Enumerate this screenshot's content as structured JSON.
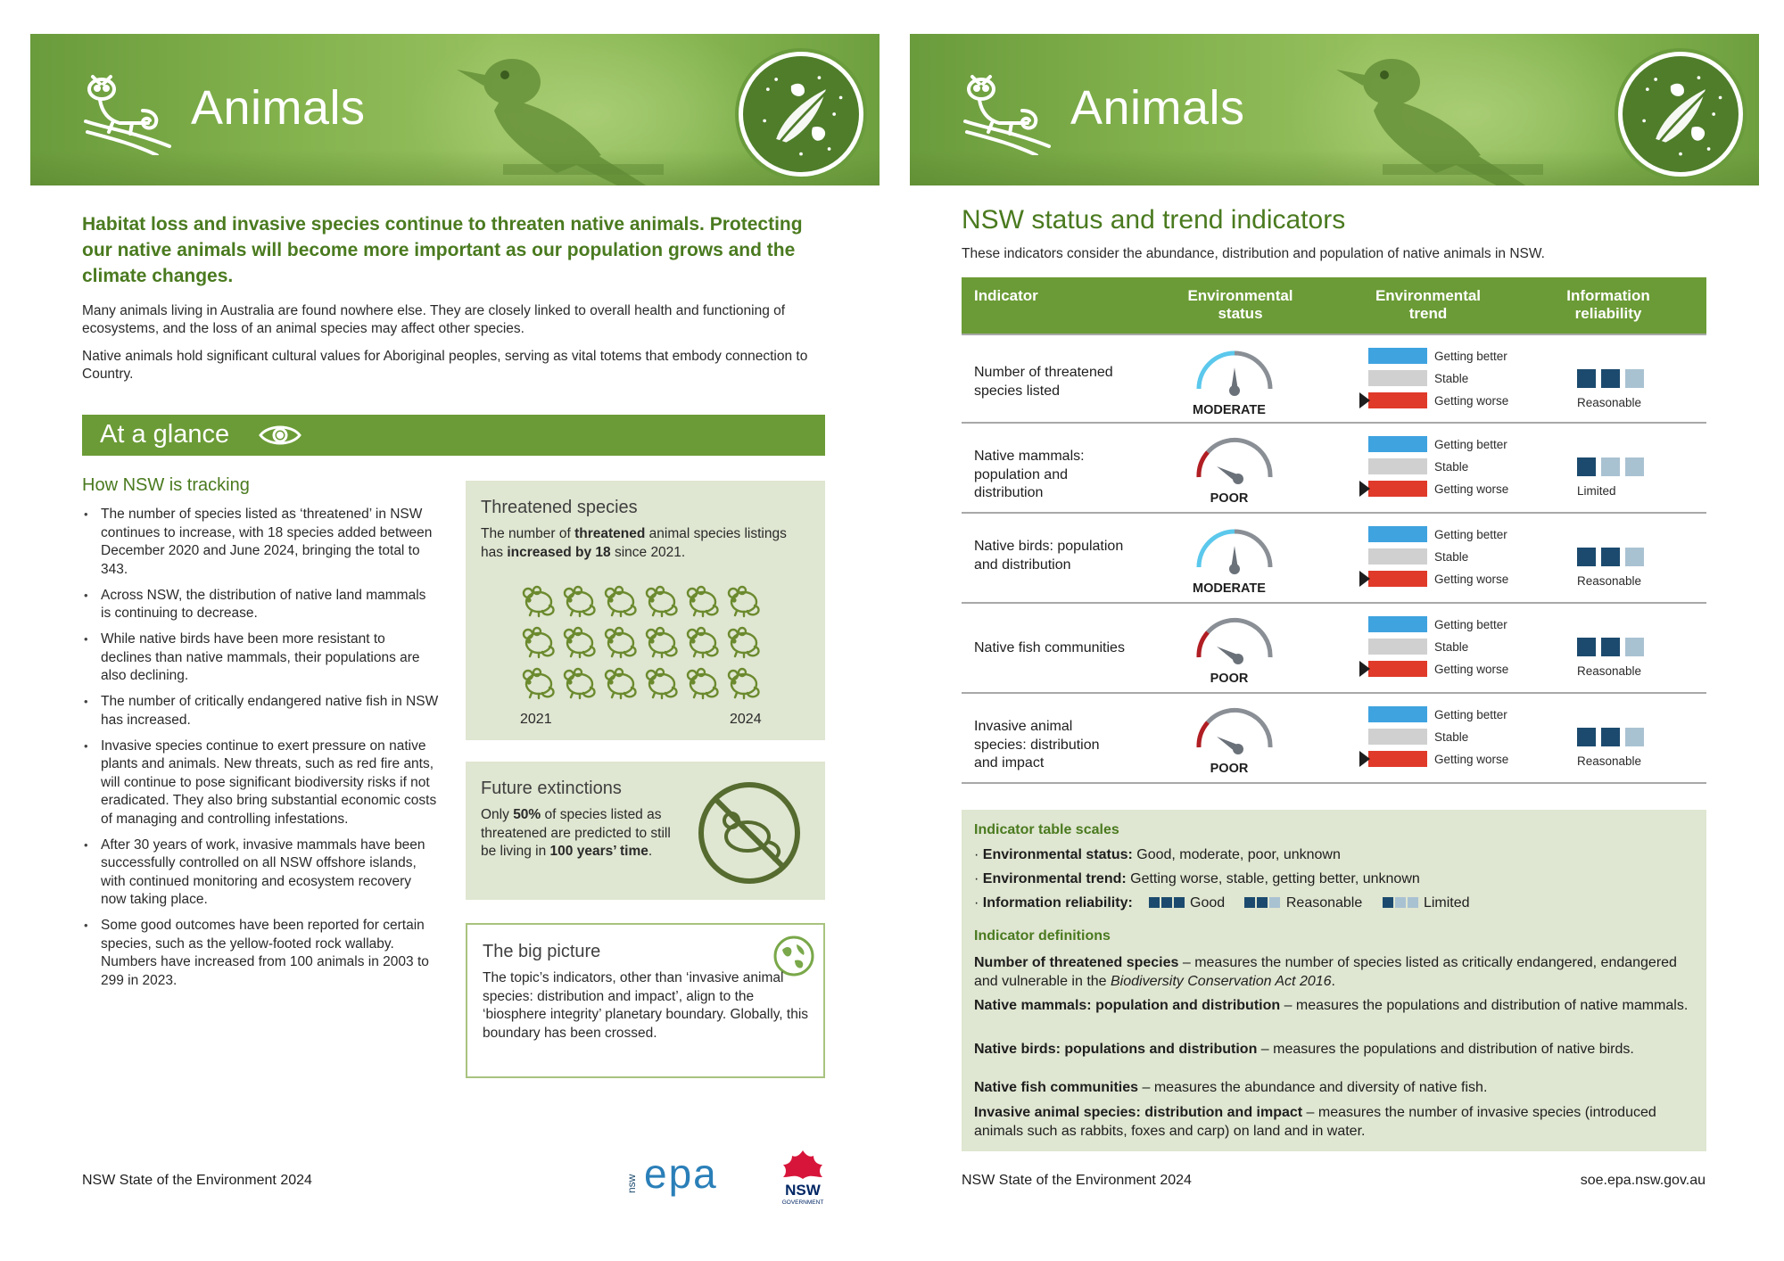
{
  "colors": {
    "brand_green": "#6b9b36",
    "heading_green": "#4a7a1f",
    "panel_green": "#dfe6d1",
    "trend_better": "#3fa3e0",
    "trend_stable": "#d0d0d0",
    "trend_worse": "#e03a2a",
    "rel_dark": "#1c4a6e",
    "rel_light": "#a9c2d2"
  },
  "left": {
    "banner_title": "Animals",
    "lead": "Habitat loss and invasive species continue to threaten native animals. Protecting our native animals will become more important as our population grows and the climate changes.",
    "para1": "Many animals living in Australia are found nowhere else. They are closely linked to overall health and functioning of ecosystems, and the loss of an animal species may affect other species.",
    "para2": "Native animals hold significant cultural values for Aboriginal peoples, serving as vital totems that embody connection to Country.",
    "glance_title": "At a glance",
    "tracking_heading": "How NSW is tracking",
    "bullets": [
      "The number of species listed as ‘threatened’ in NSW continues to increase, with 18 species added between December 2020 and June 2024, bringing the total to 343.",
      "Across NSW, the distribution of native land mammals is continuing to decrease.",
      "While native birds have been more resistant to declines than native mammals, their populations are also declining.",
      "The number of critically endangered native fish in NSW has increased.",
      "Invasive species continue to exert pressure on native plants and animals. New threats, such as red fire ants, will continue to pose significant biodiversity risks if not eradicated. They also bring substantial economic costs of managing and controlling infestations.",
      "After 30 years of work, invasive mammals have been successfully controlled on all NSW offshore islands, with continued monitoring and ecosystem recovery now taking place.",
      "Some good outcomes have been reported for certain species, such as the yellow-footed rock wallaby. Numbers have increased from 100 animals in 2003 to 299 in 2023."
    ],
    "threatened": {
      "title": "Threatened species",
      "t1": "The number of ",
      "t1b": "threatened",
      "t2": " animal species listings has ",
      "t2b": "increased by 18",
      "t3": " since 2021.",
      "year_start": "2021",
      "year_end": "2024",
      "icon_count": 18
    },
    "extinctions": {
      "title": "Future extinctions",
      "t1": "Only ",
      "t1b": "50%",
      "t2": " of species listed as threatened are predicted to still be living in ",
      "t2b": "100 years’ time",
      "t3": "."
    },
    "big_picture": {
      "title": "The big picture",
      "text": "The topic’s indicators, other than ‘invasive animal species: distribution and impact’, align to the ‘biosphere integrity’ planetary boundary. Globally, this boundary has been crossed."
    },
    "footer": "NSW State of the Environment 2024",
    "epa_small": "nsw",
    "epa_text": "epa",
    "nsw_text": "NSW",
    "nsw_gov": "GOVERNMENT"
  },
  "right": {
    "banner_title": "Animals",
    "title": "NSW status and trend indicators",
    "subtitle": "These indicators consider the abundance, distribution and population of native animals in NSW.",
    "headers": {
      "indicator": "Indicator",
      "status": "Environmental status",
      "trend": "Environmental trend",
      "reliability": "Information reliability"
    },
    "trend_labels": {
      "better": "Getting better",
      "stable": "Stable",
      "worse": "Getting worse"
    },
    "rows": [
      {
        "name": "Number of threatened species listed",
        "status": "MODERATE",
        "trend": "worse",
        "reliability": "Reasonable",
        "rel_level": 2
      },
      {
        "name": "Native mammals: population and distribution",
        "status": "POOR",
        "trend": "worse",
        "reliability": "Limited",
        "rel_level": 1
      },
      {
        "name": "Native birds: population and distribution",
        "status": "MODERATE",
        "trend": "worse",
        "reliability": "Reasonable",
        "rel_level": 2
      },
      {
        "name": "Native fish communities",
        "status": "POOR",
        "trend": "worse",
        "reliability": "Reasonable",
        "rel_level": 2
      },
      {
        "name": "Invasive animal species: distribution and impact",
        "status": "POOR",
        "trend": "worse",
        "reliability": "Reasonable",
        "rel_level": 2
      }
    ],
    "scales": {
      "heading": "Indicator table scales",
      "status_label": "Environmental status:",
      "status_values": "Good, moderate, poor, unknown",
      "trend_label": "Environmental trend:",
      "trend_values": "Getting worse, stable, getting better, unknown",
      "rel_label": "Information reliability:",
      "rel_good": "Good",
      "rel_reasonable": "Reasonable",
      "rel_limited": "Limited",
      "def_heading": "Indicator definitions",
      "defs": [
        {
          "term": "Number of threatened species",
          "text": " – measures the number of species listed as critically endangered, endangered and vulnerable in the ",
          "italic": "Biodiversity Conservation Act 2016",
          "end": "."
        },
        {
          "term": "Native mammals: population and distribution",
          "text": " – measures the populations and distribution of native mammals.",
          "italic": "",
          "end": ""
        },
        {
          "term": "Native birds: populations and distribution",
          "text": " – measures the populations and distribution of native birds.",
          "italic": "",
          "end": ""
        },
        {
          "term": "Native fish communities",
          "text": " – measures the abundance and diversity of native fish.",
          "italic": "",
          "end": ""
        },
        {
          "term": "Invasive animal species: distribution and impact",
          "text": " – measures the number of invasive species (introduced animals such as rabbits, foxes and carp) on land and in water.",
          "italic": "",
          "end": ""
        }
      ]
    },
    "footer": "NSW State of the Environment 2024",
    "url": "soe.epa.nsw.gov.au"
  }
}
